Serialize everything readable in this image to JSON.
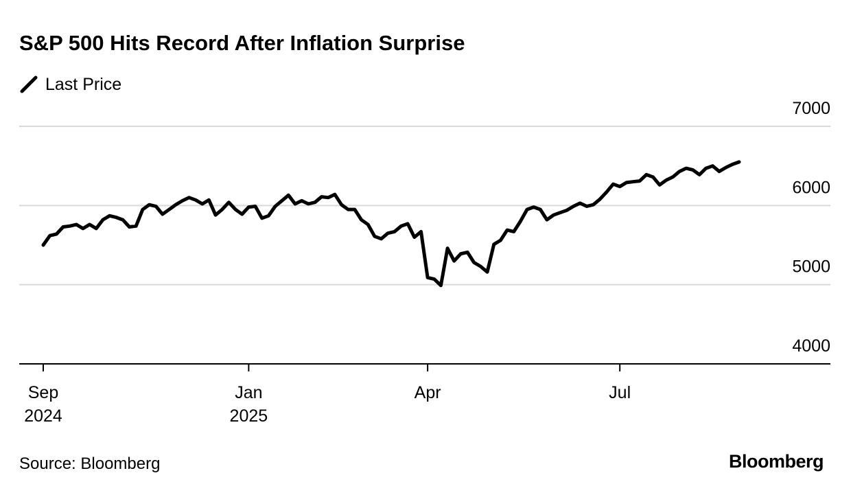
{
  "chart_data": {
    "type": "line",
    "title": "S&P 500 Hits Record After Inflation Surprise",
    "source": "Source: Bloomberg",
    "brand": "Bloomberg",
    "series": [
      {
        "name": "Last Price",
        "color": "#000000",
        "values": [
          5500,
          5620,
          5640,
          5730,
          5740,
          5760,
          5710,
          5760,
          5710,
          5820,
          5870,
          5850,
          5820,
          5730,
          5740,
          5950,
          6010,
          5990,
          5890,
          5950,
          6010,
          6060,
          6100,
          6070,
          6020,
          6070,
          5880,
          5950,
          6040,
          5950,
          5890,
          5980,
          5990,
          5840,
          5870,
          5990,
          6060,
          6130,
          6020,
          6060,
          6020,
          6040,
          6110,
          6100,
          6140,
          6010,
          5950,
          5950,
          5820,
          5760,
          5610,
          5580,
          5650,
          5670,
          5740,
          5770,
          5600,
          5670,
          5090,
          5070,
          4990,
          5460,
          5300,
          5390,
          5410,
          5280,
          5230,
          5160,
          5510,
          5560,
          5690,
          5670,
          5800,
          5950,
          5980,
          5950,
          5820,
          5880,
          5910,
          5940,
          5990,
          6030,
          5990,
          6010,
          6080,
          6170,
          6270,
          6240,
          6290,
          6300,
          6310,
          6390,
          6360,
          6260,
          6320,
          6360,
          6430,
          6470,
          6450,
          6390,
          6470,
          6500,
          6430,
          6480,
          6520,
          6550
        ]
      }
    ],
    "xlim": [
      0,
      105
    ],
    "xticks": [
      {
        "value": 0,
        "label": "Sep 2024"
      },
      {
        "value": 31,
        "label": "Jan 2025"
      },
      {
        "value": 58,
        "label": "Apr"
      },
      {
        "value": 87,
        "label": "Jul"
      }
    ],
    "ylim": [
      4000,
      7000
    ],
    "yticks": [
      4000,
      5000,
      6000,
      7000
    ],
    "grid": true
  }
}
